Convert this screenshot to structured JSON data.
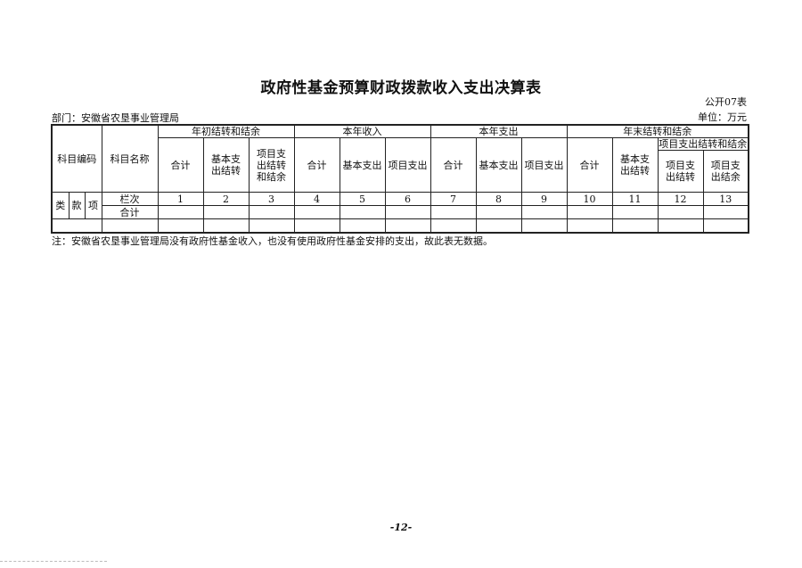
{
  "title": "政府性基金预算财政拨款收入支出决算表",
  "form_no": "公开07表",
  "unit": "单位：万元",
  "department": "部门：安徽省农垦事业管理局",
  "table": {
    "code_header": "科目编码",
    "name_header": "科目名称",
    "groups": {
      "g1": "年初结转和结余",
      "g2": "本年收入",
      "g3": "本年支出",
      "g4": "年末结转和结余",
      "g4_sub": "项目支出结转和结余"
    },
    "cols": [
      "合计",
      "基本支出结转",
      "项目支出结转和结余",
      "合计",
      "基本支出",
      "项目支出",
      "合计",
      "基本支出",
      "项目支出",
      "合计",
      "基本支出结转",
      "项目支出结转",
      "项目支出结余"
    ],
    "code_parts": [
      "类",
      "款",
      "项"
    ],
    "row_labels": [
      "栏次",
      "合计"
    ],
    "col_numbers": [
      "1",
      "2",
      "3",
      "4",
      "5",
      "6",
      "7",
      "8",
      "9",
      "10",
      "11",
      "12",
      "13"
    ]
  },
  "note": "注：安徽省农垦事业管理局没有政府性基金收入，也没有使用政府性基金安排的支出，故此表无数据。",
  "page_number": "-12-"
}
